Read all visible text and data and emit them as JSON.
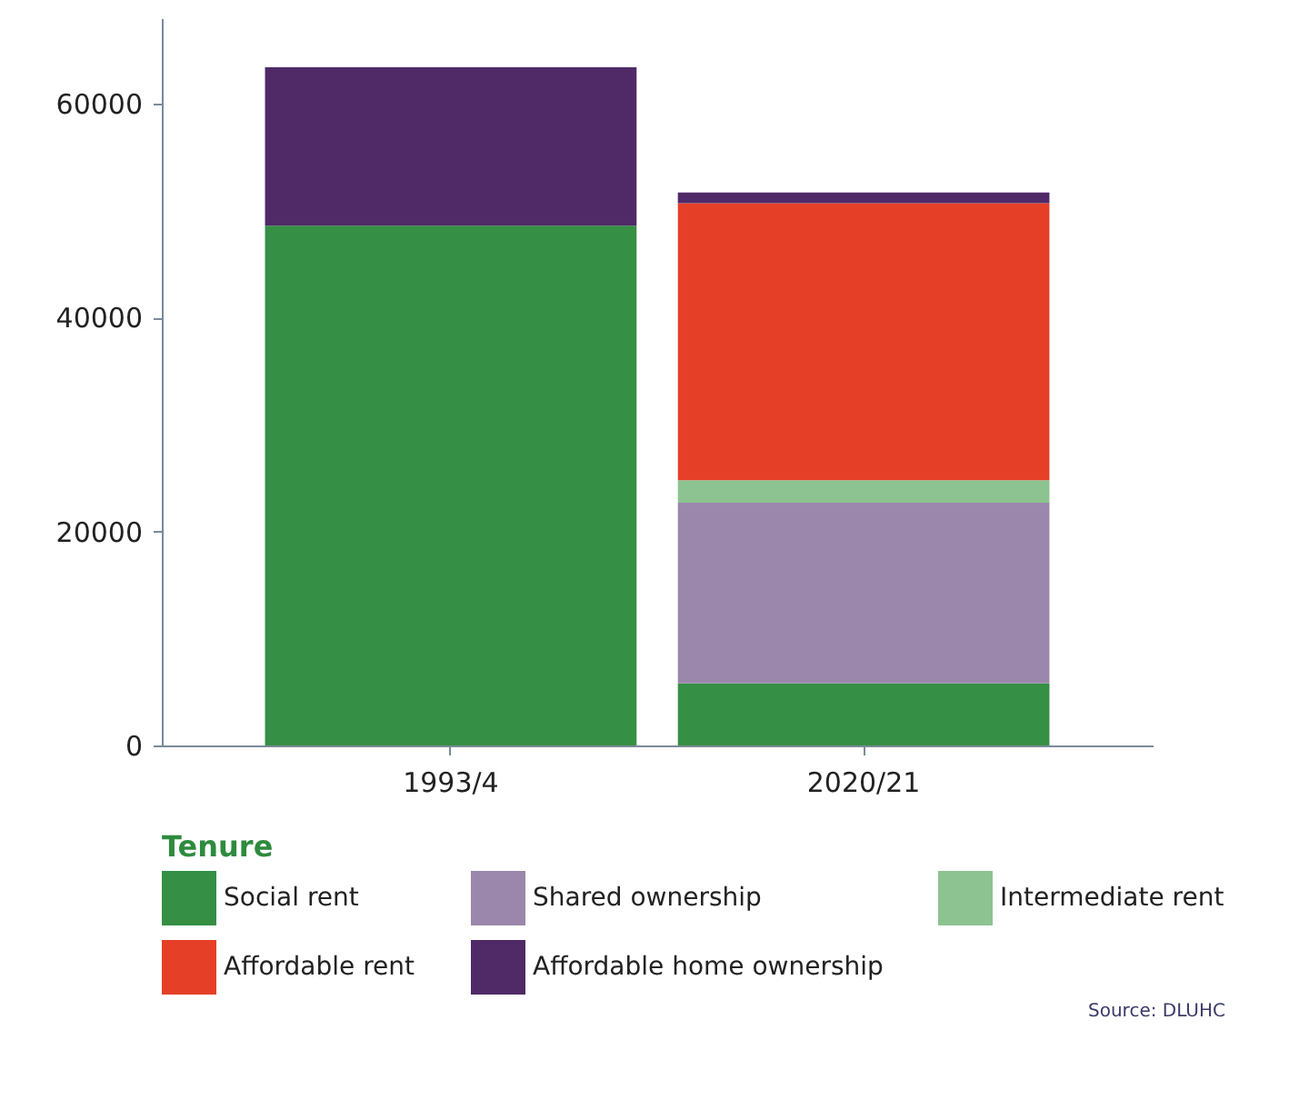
{
  "chart_data": {
    "type": "bar",
    "stacked": true,
    "categories": [
      "1993/4",
      "2020/21"
    ],
    "series": [
      {
        "name": "Social rent",
        "color": "#358f44",
        "values": [
          48600,
          5800
        ]
      },
      {
        "name": "Shared ownership",
        "color": "#9b87ab",
        "values": [
          0,
          16900
        ]
      },
      {
        "name": "Intermediate rent",
        "color": "#8dc390",
        "values": [
          0,
          2100
        ]
      },
      {
        "name": "Affordable rent",
        "color": "#e54027",
        "values": [
          0,
          25900
        ]
      },
      {
        "name": "Affordable home ownership",
        "color": "#4f2a67",
        "values": [
          14800,
          1000
        ]
      }
    ],
    "ylim": [
      0,
      68000
    ],
    "yticks": [
      0,
      20000,
      40000,
      60000
    ],
    "grid": false,
    "legend": "bottom",
    "legend_title": "Tenure",
    "annotations": [
      "Source: DLUHC"
    ]
  }
}
